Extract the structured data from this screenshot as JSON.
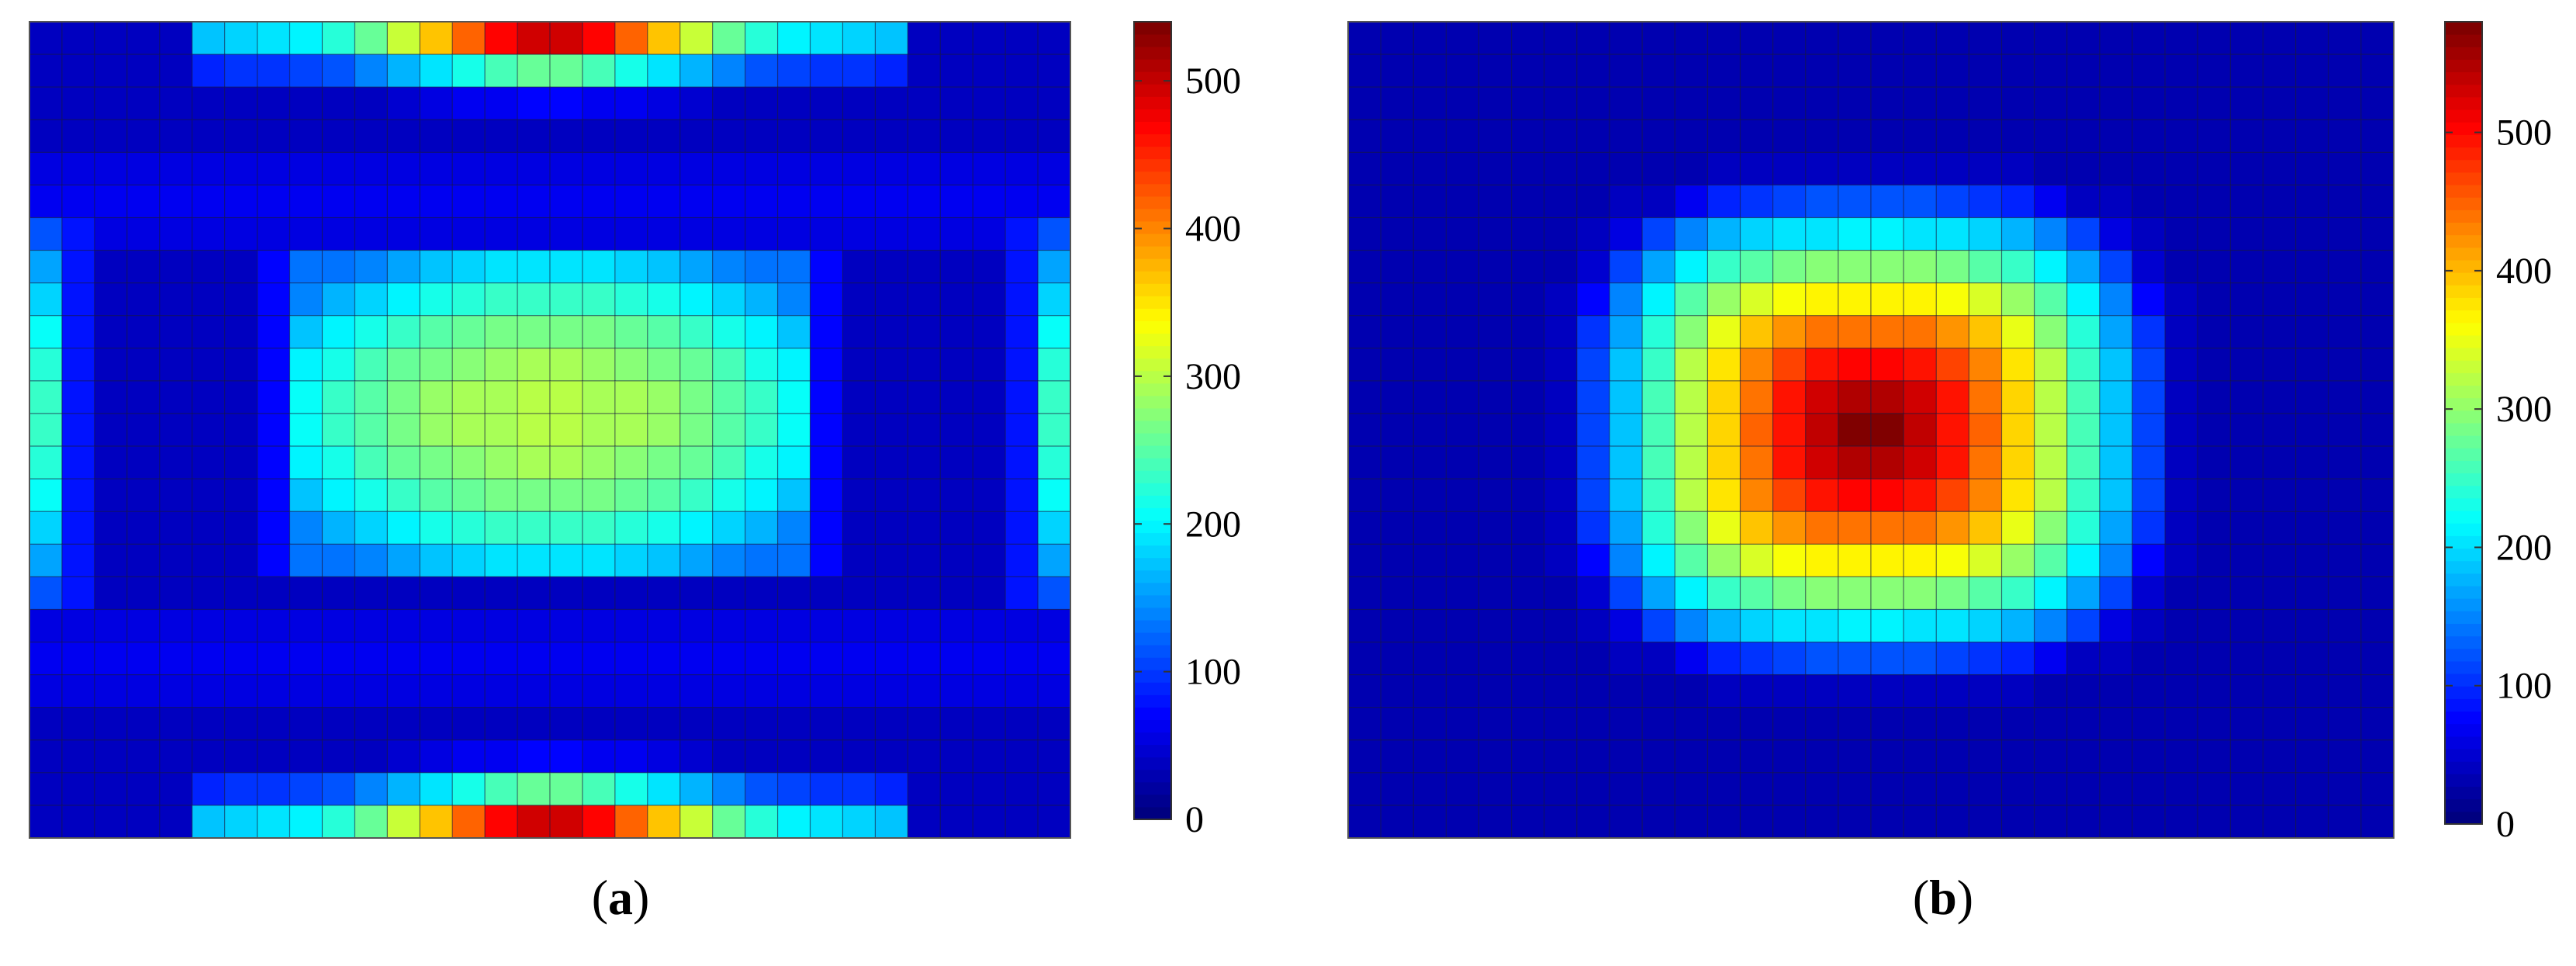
{
  "panels": [
    {
      "label_open": "(",
      "label_letter": "a",
      "label_close": ")",
      "chart_data": {
        "type": "heatmap",
        "grid_cols": 32,
        "grid_rows": 25,
        "colormap": "jet",
        "colorbar_range": [
          0,
          540
        ],
        "colorbar_ticks": [
          "0",
          "100",
          "200",
          "300",
          "400",
          "500"
        ],
        "pattern": "two strips of max intensity ~540 along top and bottom edges, central rectangular plateau ~300, side strips ~230",
        "peak_value": 540,
        "center_plateau_value": 300,
        "side_strip_value": 230
      }
    },
    {
      "label_open": "(",
      "label_letter": "b",
      "label_close": ")",
      "chart_data": {
        "type": "heatmap",
        "grid_cols": 32,
        "grid_rows": 25,
        "colormap": "jet",
        "colorbar_range": [
          0,
          580
        ],
        "colorbar_ticks": [
          "0",
          "100",
          "200",
          "300",
          "400",
          "500"
        ],
        "pattern": "single central peak ~580 decaying outward, zero near edges",
        "peak_value": 580
      }
    }
  ]
}
